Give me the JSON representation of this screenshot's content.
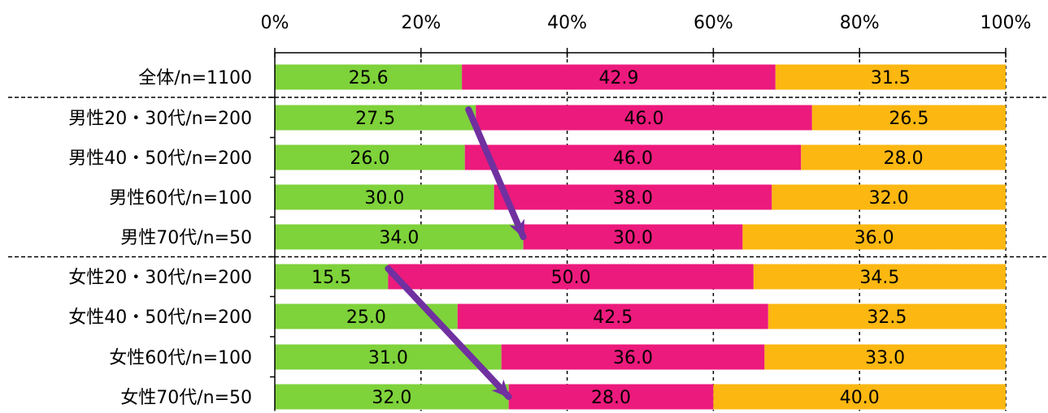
{
  "chart_data": {
    "type": "bar",
    "orientation": "horizontal",
    "stacked": "percent",
    "categories": [
      "全体/n=1100",
      "男性20・30代/n=200",
      "男性40・50代/n=200",
      "男性60代/n=100",
      "男性70代/n=50",
      "女性20・30代/n=200",
      "女性40・50代/n=200",
      "女性60代/n=100",
      "女性70代/n=50"
    ],
    "series": [
      {
        "color": "#7ed23a",
        "values": [
          25.6,
          27.5,
          26.0,
          30.0,
          34.0,
          15.5,
          25.0,
          31.0,
          32.0
        ]
      },
      {
        "color": "#ec1a7c",
        "values": [
          42.9,
          46.0,
          46.0,
          38.0,
          30.0,
          50.0,
          42.5,
          36.0,
          28.0
        ]
      },
      {
        "color": "#fcb711",
        "values": [
          31.5,
          26.5,
          28.0,
          32.0,
          36.0,
          34.5,
          32.5,
          33.0,
          40.0
        ]
      }
    ],
    "data_labels": [
      [
        "25.6",
        "27.5",
        "26.0",
        "30.0",
        "34.0",
        "15.5",
        "25.0",
        "31.0",
        "32.0"
      ],
      [
        "42.9",
        "46.0",
        "46.0",
        "38.0",
        "30.0",
        "50.0",
        "42.5",
        "36.0",
        "28.0"
      ],
      [
        "31.5",
        "26.5",
        "28.0",
        "32.0",
        "36.0",
        "34.5",
        "32.5",
        "33.0",
        "40.0"
      ]
    ],
    "x_ticks": [
      "0%",
      "20%",
      "40%",
      "60%",
      "80%",
      "100%"
    ],
    "xlim": [
      0,
      100
    ],
    "axis_position": "top",
    "grid": "vertical-dashed",
    "group_separators_after": [
      0,
      4
    ],
    "annotations": [
      {
        "type": "arrow",
        "color": "#7030a0",
        "from": {
          "category": "男性20・30代/n=200",
          "value": 26.5
        },
        "to": {
          "category": "男性70代/n=50",
          "value": 34.0
        }
      },
      {
        "type": "arrow",
        "color": "#7030a0",
        "from": {
          "category": "女性20・30代/n=200",
          "value": 15.5
        },
        "to": {
          "category": "女性70代/n=50",
          "value": 32.0
        }
      }
    ],
    "title": "",
    "xlabel": "",
    "ylabel": ""
  }
}
